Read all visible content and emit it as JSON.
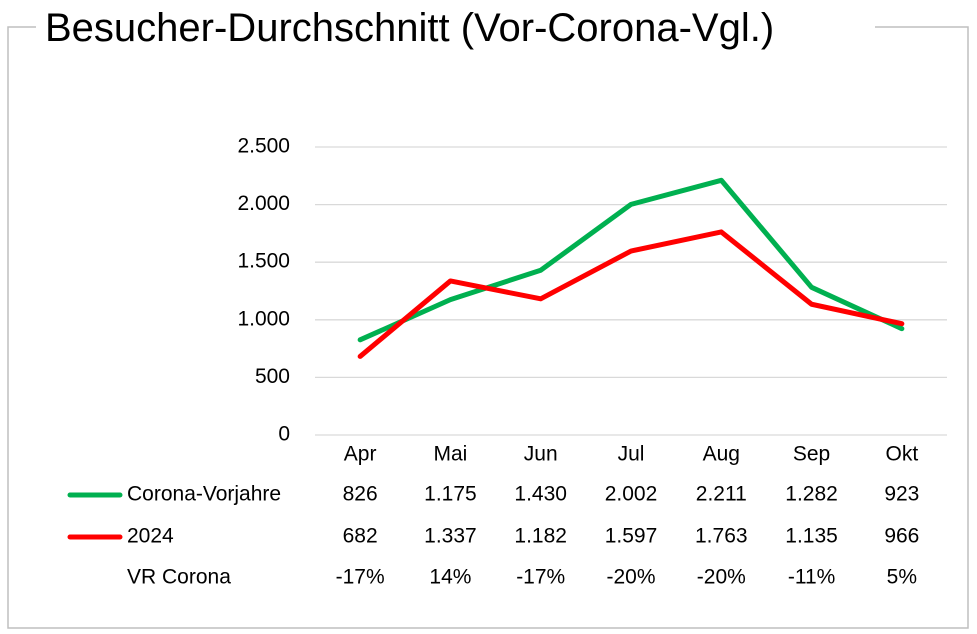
{
  "chart_data": {
    "type": "line",
    "title": "Besucher-Durchschnitt (Vor-Corona-Vgl.)",
    "categories": [
      "Apr",
      "Mai",
      "Jun",
      "Jul",
      "Aug",
      "Sep",
      "Okt"
    ],
    "series": [
      {
        "name": "Corona-Vorjahre",
        "color": "#00b050",
        "values": [
          826,
          1175,
          1430,
          2002,
          2211,
          1282,
          923
        ],
        "value_labels": [
          "826",
          "1.175",
          "1.430",
          "2.002",
          "2.211",
          "1.282",
          "923"
        ]
      },
      {
        "name": "2024",
        "color": "#ff0000",
        "values": [
          682,
          1337,
          1182,
          1597,
          1763,
          1135,
          966
        ],
        "value_labels": [
          "682",
          "1.337",
          "1.182",
          "1.597",
          "1.763",
          "1.135",
          "966"
        ]
      },
      {
        "name": "VR Corona",
        "values": [
          -17,
          14,
          -17,
          -20,
          -20,
          -11,
          5
        ],
        "value_labels": [
          "-17%",
          "14%",
          "-17%",
          "-20%",
          "-20%",
          "-11%",
          "5%"
        ]
      }
    ],
    "ylim": [
      0,
      2500
    ],
    "yticks": [
      0,
      500,
      {
        "value": 1000,
        "label": "1.000"
      },
      {
        "value": 1500,
        "label": "1.500"
      },
      {
        "value": 2000,
        "label": "2.000"
      },
      {
        "value": 2500,
        "label": "2.500"
      }
    ],
    "grid": true
  }
}
